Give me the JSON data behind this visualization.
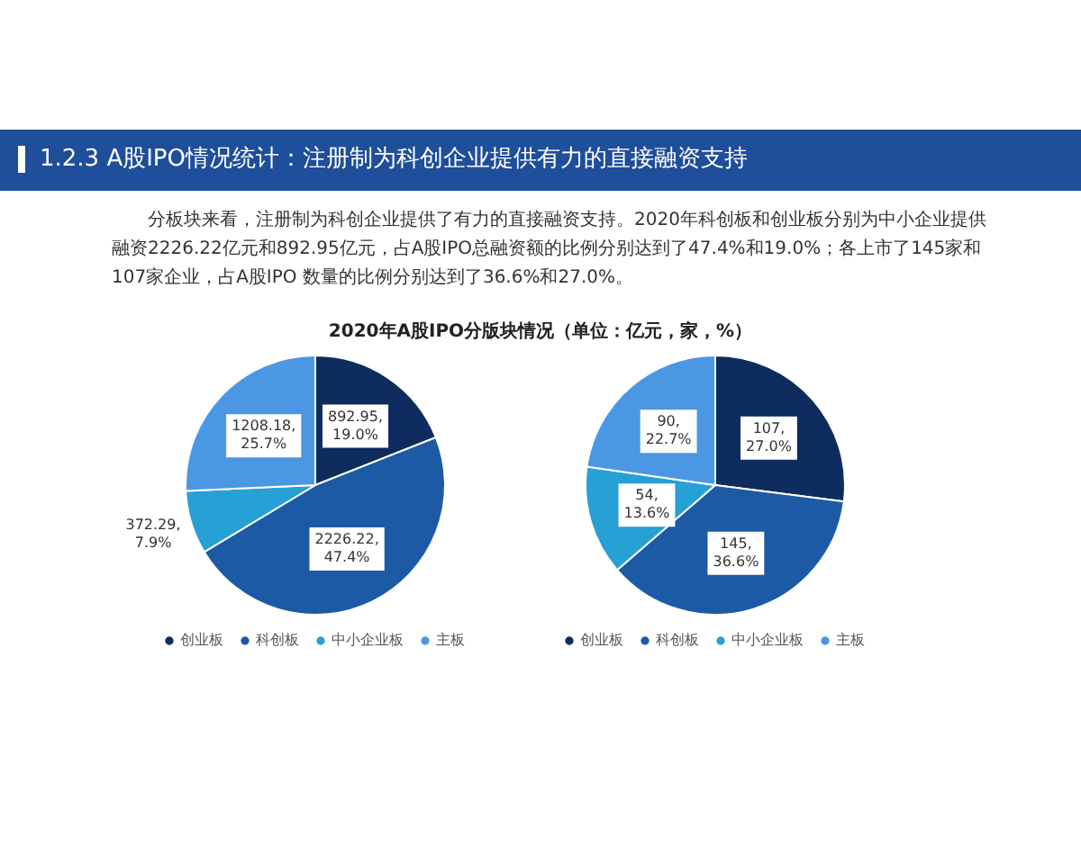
{
  "chart_data": [
    {
      "type": "pie",
      "title": "1.2.3 A股IPO情况统计：注册制为科创企业提供有力的直接融资支持",
      "subtitle": "分板块来看，注册制为科创企业提供了有力的直接融资支持。2020年科创板和创业板分别为中小企业提供融资2226.22亿元和892.95亿元，占A股IPO总融资额的比例分别达到了47.4%和19.0%；各上市了145家和107家企业，占A股IPO 数量的比例分别达到了36.6%和27.0%。",
      "annotations": [
        "2020年A股IPO分版块情况（单位：亿元，家，%）"
      ],
      "categories": [
        "创业板",
        "科创板",
        "中小企业板",
        "主板"
      ],
      "values": [
        892.95,
        2226.22,
        372.29,
        1208.18
      ],
      "value_labels": [
        "892.95, 19.0%",
        "2226.22, 47.4%",
        "372.29, 7.9%",
        "1208.18, 25.7%"
      ],
      "colors": [
        "#0e2d5e",
        "#1d5aa5",
        "#27a0d6",
        "#4b97e4"
      ],
      "legend": "bottom"
    },
    {
      "type": "pie",
      "categories": [
        "创业板",
        "科创板",
        "中小企业板",
        "主板"
      ],
      "values": [
        107,
        145,
        54,
        90
      ],
      "value_labels": [
        "107, 27.0%",
        "145, 36.6%",
        "54, 13.6%",
        "90, 22.7%"
      ],
      "colors": [
        "#0e2d5e",
        "#1d5aa5",
        "#27a0d6",
        "#4b97e4"
      ],
      "legend": "bottom"
    }
  ]
}
